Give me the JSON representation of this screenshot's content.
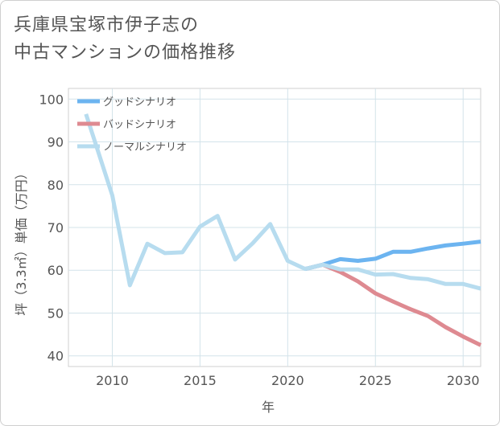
{
  "title_lines": [
    "兵庫県宝塚市伊子志の",
    "中古マンションの価格推移"
  ],
  "chart_data": {
    "type": "line",
    "title": "兵庫県宝塚市伊子志の中古マンションの価格推移",
    "xlabel": "年",
    "ylabel": "坪（3.3㎡）単価（万円）",
    "xlim": [
      2007.5,
      2031
    ],
    "ylim": [
      37.5,
      102.5
    ],
    "xticks": [
      2010,
      2015,
      2020,
      2025,
      2030
    ],
    "yticks": [
      40,
      50,
      60,
      70,
      80,
      90,
      100
    ],
    "grid": true,
    "legend_position": "top-left",
    "series": [
      {
        "name": "グッドシナリオ",
        "color": "#6cb4f0",
        "points": [
          [
            2021,
            60.3
          ],
          [
            2022,
            61.3
          ],
          [
            2023,
            62.6
          ],
          [
            2024,
            62.2
          ],
          [
            2025,
            62.7
          ],
          [
            2026,
            64.3
          ],
          [
            2027,
            64.3
          ],
          [
            2028,
            65.1
          ],
          [
            2029,
            65.8
          ],
          [
            2030,
            66.2
          ],
          [
            2031,
            66.7
          ]
        ]
      },
      {
        "name": "バッドシナリオ",
        "color": "#de8a91",
        "points": [
          [
            2021,
            60.3
          ],
          [
            2022,
            61.3
          ],
          [
            2023,
            59.6
          ],
          [
            2024,
            57.4
          ],
          [
            2025,
            54.6
          ],
          [
            2026,
            52.7
          ],
          [
            2027,
            50.9
          ],
          [
            2028,
            49.3
          ],
          [
            2029,
            46.7
          ],
          [
            2030,
            44.5
          ],
          [
            2031,
            42.5
          ]
        ]
      },
      {
        "name": "ノーマルシナリオ",
        "color": "#b7dcef",
        "points": [
          [
            2008.5,
            96.5
          ],
          [
            2010,
            77.5
          ],
          [
            2011,
            56.5
          ],
          [
            2012,
            66.2
          ],
          [
            2013,
            64.0
          ],
          [
            2014,
            64.2
          ],
          [
            2015,
            70.2
          ],
          [
            2016,
            72.7
          ],
          [
            2017,
            62.5
          ],
          [
            2018,
            66.3
          ],
          [
            2019,
            70.8
          ],
          [
            2020,
            62.2
          ],
          [
            2021,
            60.3
          ],
          [
            2022,
            61.3
          ],
          [
            2023,
            60.2
          ],
          [
            2024,
            60.2
          ],
          [
            2025,
            59.0
          ],
          [
            2026,
            59.1
          ],
          [
            2027,
            58.2
          ],
          [
            2028,
            57.9
          ],
          [
            2029,
            56.8
          ],
          [
            2030,
            56.8
          ],
          [
            2031,
            55.7
          ]
        ]
      }
    ]
  }
}
